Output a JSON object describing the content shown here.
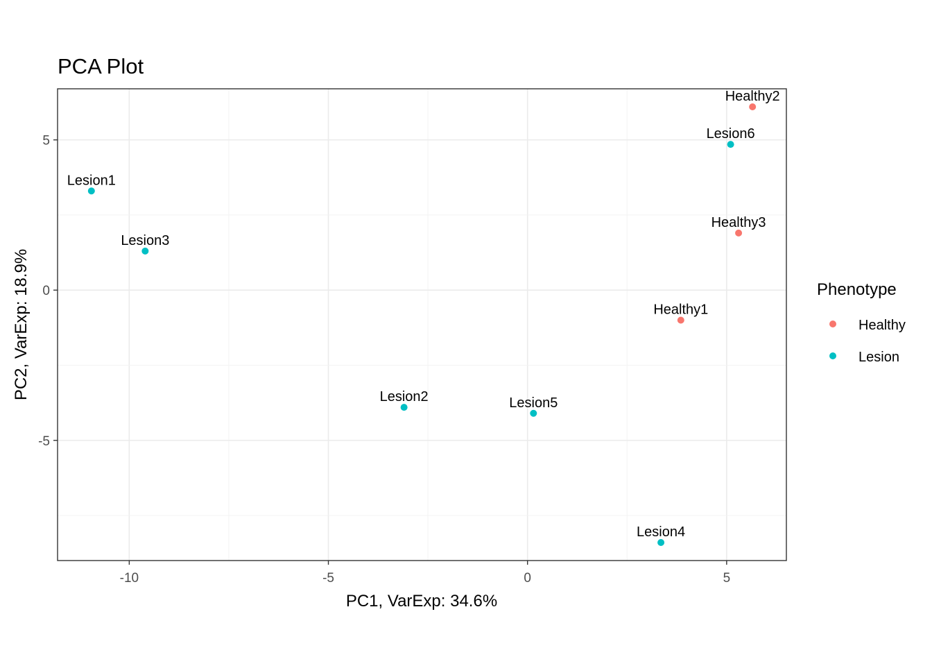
{
  "chart_data": {
    "type": "scatter",
    "title": "PCA Plot",
    "xlabel": "PC1, VarExp: 34.6%",
    "ylabel": "PC2, VarExp: 18.9%",
    "xlim": [
      -11.8,
      6.5
    ],
    "ylim": [
      -9.0,
      6.7
    ],
    "x_ticks": [
      -10,
      -5,
      0,
      5
    ],
    "y_ticks": [
      -5,
      0,
      5
    ],
    "x_tick_labels": [
      "-10",
      "-5",
      "0",
      "5"
    ],
    "y_tick_labels": [
      "-5",
      "0",
      "5"
    ],
    "grid": true,
    "legend": {
      "title": "Phenotype",
      "position": "right",
      "entries": [
        {
          "label": "Healthy",
          "color": "#F8766D"
        },
        {
          "label": "Lesion",
          "color": "#00BFC4"
        }
      ]
    },
    "points": [
      {
        "label": "Healthy2",
        "group": "Healthy",
        "x": 5.65,
        "y": 6.1
      },
      {
        "label": "Lesion6",
        "group": "Lesion",
        "x": 5.1,
        "y": 4.85
      },
      {
        "label": "Lesion1",
        "group": "Lesion",
        "x": -10.95,
        "y": 3.3
      },
      {
        "label": "Lesion3",
        "group": "Lesion",
        "x": -9.6,
        "y": 1.3
      },
      {
        "label": "Healthy3",
        "group": "Healthy",
        "x": 5.3,
        "y": 1.9
      },
      {
        "label": "Healthy1",
        "group": "Healthy",
        "x": 3.85,
        "y": -1.0
      },
      {
        "label": "Lesion2",
        "group": "Lesion",
        "x": -3.1,
        "y": -3.9
      },
      {
        "label": "Lesion5",
        "group": "Lesion",
        "x": 0.15,
        "y": -4.1
      },
      {
        "label": "Lesion4",
        "group": "Lesion",
        "x": 3.35,
        "y": -8.4
      }
    ]
  }
}
